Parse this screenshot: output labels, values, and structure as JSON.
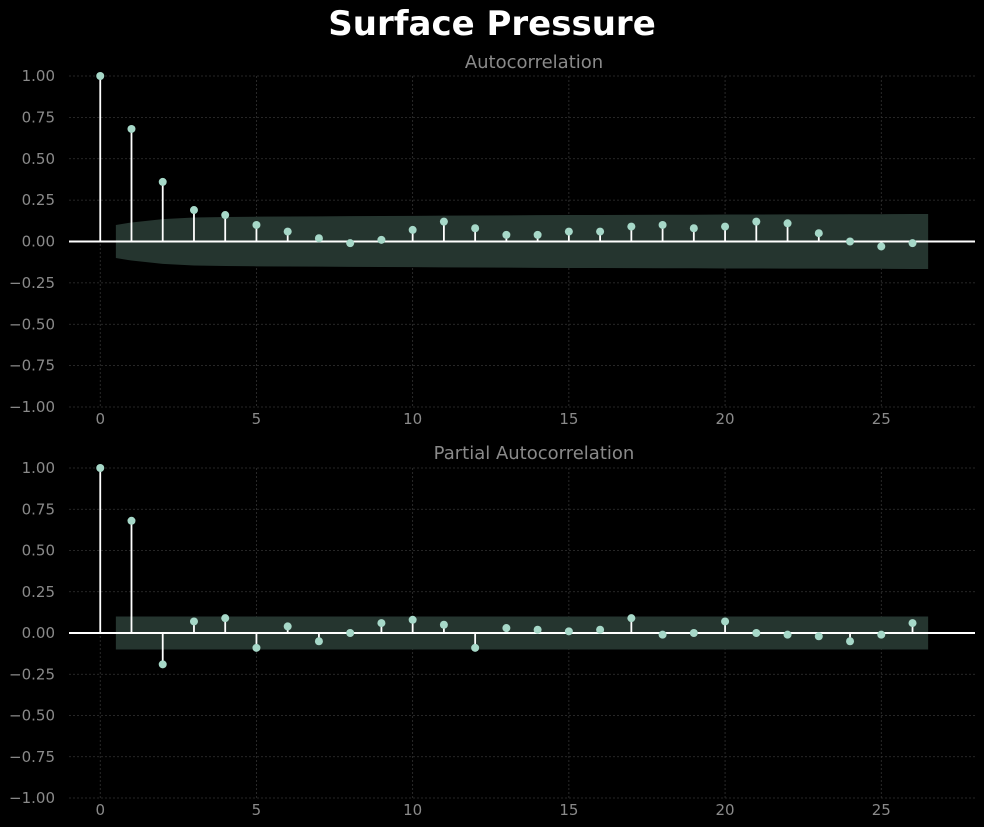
{
  "title": "Surface Pressure",
  "colors": {
    "background": "#000000",
    "stem": "#ffffff",
    "marker": "#a6d8c8",
    "confidence_band": "#25352f",
    "grid": "#333333",
    "text": "#8a8a8a"
  },
  "chart_data": [
    {
      "type": "stem",
      "title": "Autocorrelation",
      "xlim": [
        -1,
        28
      ],
      "ylim": [
        -1.0,
        1.0
      ],
      "xticks": [
        0,
        5,
        10,
        15,
        20,
        25
      ],
      "yticks": [
        1.0,
        0.75,
        0.5,
        0.25,
        0.0,
        -0.25,
        -0.5,
        -0.75,
        -1.0
      ],
      "ytick_labels": [
        "1.00",
        "0.75",
        "0.50",
        "0.25",
        "0.00",
        "−0.25",
        "−0.50",
        "−0.75",
        "−1.00"
      ],
      "grid": true,
      "lags": [
        0,
        1,
        2,
        3,
        4,
        5,
        6,
        7,
        8,
        9,
        10,
        11,
        12,
        13,
        14,
        15,
        16,
        17,
        18,
        19,
        20,
        21,
        22,
        23,
        24,
        25,
        26
      ],
      "values": [
        1.0,
        0.68,
        0.36,
        0.19,
        0.16,
        0.1,
        0.06,
        0.02,
        -0.01,
        0.01,
        0.07,
        0.12,
        0.08,
        0.04,
        0.04,
        0.06,
        0.06,
        0.09,
        0.1,
        0.08,
        0.09,
        0.12,
        0.11,
        0.05,
        0.0,
        -0.03,
        -0.01
      ],
      "confidence_band": {
        "lags": [
          0.5,
          1,
          2,
          3,
          4,
          5,
          6,
          7,
          8,
          9,
          10,
          11,
          12,
          13,
          14,
          15,
          16,
          17,
          18,
          19,
          20,
          21,
          22,
          23,
          24,
          25,
          26,
          26.5
        ],
        "upper": [
          0.1,
          0.115,
          0.135,
          0.145,
          0.148,
          0.15,
          0.151,
          0.152,
          0.153,
          0.154,
          0.155,
          0.156,
          0.157,
          0.158,
          0.159,
          0.16,
          0.16,
          0.161,
          0.162,
          0.162,
          0.163,
          0.163,
          0.164,
          0.164,
          0.165,
          0.165,
          0.166,
          0.166
        ]
      }
    },
    {
      "type": "stem",
      "title": "Partial Autocorrelation",
      "xlim": [
        -1,
        28
      ],
      "ylim": [
        -1.0,
        1.0
      ],
      "xticks": [
        0,
        5,
        10,
        15,
        20,
        25
      ],
      "yticks": [
        1.0,
        0.75,
        0.5,
        0.25,
        0.0,
        -0.25,
        -0.5,
        -0.75,
        -1.0
      ],
      "ytick_labels": [
        "1.00",
        "0.75",
        "0.50",
        "0.25",
        "0.00",
        "−0.25",
        "−0.50",
        "−0.75",
        "−1.00"
      ],
      "grid": true,
      "lags": [
        0,
        1,
        2,
        3,
        4,
        5,
        6,
        7,
        8,
        9,
        10,
        11,
        12,
        13,
        14,
        15,
        16,
        17,
        18,
        19,
        20,
        21,
        22,
        23,
        24,
        25,
        26
      ],
      "values": [
        1.0,
        0.68,
        -0.19,
        0.07,
        0.09,
        -0.09,
        0.04,
        -0.05,
        0.0,
        0.06,
        0.08,
        0.05,
        -0.09,
        0.03,
        0.02,
        0.01,
        0.02,
        0.09,
        -0.01,
        0.0,
        0.07,
        0.0,
        -0.01,
        -0.02,
        -0.05,
        -0.01,
        0.06
      ],
      "confidence_band": {
        "lags": [
          0.5,
          26.5
        ],
        "upper": [
          0.1,
          0.1
        ]
      }
    }
  ]
}
